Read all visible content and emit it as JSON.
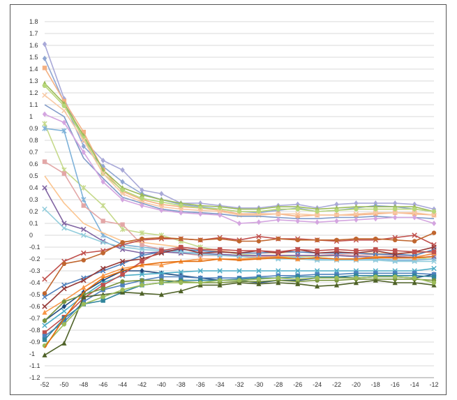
{
  "chart_data": {
    "type": "line",
    "title": "",
    "xlabel": "",
    "ylabel": "",
    "x": [
      -52,
      -50,
      -48,
      -46,
      -44,
      -42,
      -40,
      -38,
      -36,
      -34,
      -32,
      -30,
      -28,
      -26,
      -24,
      -22,
      -20,
      -18,
      -16,
      -14,
      -12
    ],
    "xlim": [
      -52,
      -12
    ],
    "ylim": [
      -1.2,
      1.8
    ],
    "ytick_step": 0.1,
    "grid": true,
    "legend": "none",
    "series": [
      {
        "color": "#a9a9d8",
        "marker": "diamond",
        "values": [
          1.61,
          1.15,
          0.8,
          0.63,
          0.55,
          0.38,
          0.35,
          0.27,
          0.27,
          0.25,
          0.23,
          0.23,
          0.25,
          0.26,
          0.23,
          0.26,
          0.27,
          0.27,
          0.27,
          0.26,
          0.22
        ]
      },
      {
        "color": "#8fa6d2",
        "marker": "diamond",
        "values": [
          1.49,
          1.12,
          0.75,
          0.58,
          0.45,
          0.35,
          0.3,
          0.26,
          0.24,
          0.22,
          0.2,
          0.19,
          0.21,
          0.23,
          0.2,
          0.21,
          0.23,
          0.25,
          0.24,
          0.22,
          0.2
        ]
      },
      {
        "color": "#f4b183",
        "marker": "square",
        "values": [
          1.41,
          1.13,
          0.87,
          0.55,
          0.37,
          0.3,
          0.26,
          0.24,
          0.23,
          0.21,
          0.18,
          0.18,
          0.18,
          0.16,
          0.17,
          0.17,
          0.17,
          0.18,
          0.19,
          0.18,
          0.17
        ]
      },
      {
        "color": "#9bbb59",
        "marker": "triangle",
        "values": [
          1.28,
          1.11,
          0.84,
          0.55,
          0.4,
          0.34,
          0.3,
          0.27,
          0.25,
          0.24,
          0.22,
          0.22,
          0.24,
          0.24,
          0.22,
          0.23,
          0.24,
          0.24,
          0.24,
          0.24,
          0.2
        ]
      },
      {
        "color": "#b7d77a",
        "marker": "circle",
        "values": [
          1.26,
          1.09,
          0.82,
          0.52,
          0.38,
          0.31,
          0.28,
          0.25,
          0.23,
          0.22,
          0.2,
          0.2,
          0.22,
          0.22,
          0.2,
          0.21,
          0.22,
          0.22,
          0.22,
          0.22,
          0.2
        ]
      },
      {
        "color": "#f8c9a4",
        "marker": "x",
        "values": [
          1.18,
          1.05,
          0.8,
          0.52,
          0.35,
          0.28,
          0.24,
          0.22,
          0.21,
          0.2,
          0.17,
          0.17,
          0.18,
          0.18,
          0.17,
          0.17,
          0.18,
          0.19,
          0.19,
          0.19,
          0.17
        ]
      },
      {
        "color": "#7f9ac8",
        "marker": "none",
        "values": [
          1.1,
          1.0,
          0.65,
          0.48,
          0.32,
          0.27,
          0.22,
          0.2,
          0.19,
          0.18,
          0.16,
          0.16,
          0.15,
          0.14,
          0.14,
          0.15,
          0.15,
          0.16,
          0.15,
          0.15,
          0.14
        ]
      },
      {
        "color": "#d4a5e0",
        "marker": "diamond",
        "values": [
          1.02,
          0.95,
          0.7,
          0.45,
          0.3,
          0.25,
          0.21,
          0.19,
          0.18,
          0.17,
          0.1,
          0.11,
          0.13,
          0.12,
          0.11,
          0.12,
          0.13,
          0.14,
          0.15,
          0.15,
          0.1
        ]
      },
      {
        "color": "#c5d98a",
        "marker": "star",
        "values": [
          0.94,
          0.55,
          0.4,
          0.25,
          0.05,
          0.02,
          0.0,
          -0.05,
          -0.1,
          -0.13,
          -0.16,
          -0.17,
          -0.18,
          -0.18,
          -0.18,
          -0.17,
          -0.18,
          -0.18,
          -0.18,
          -0.19,
          -0.2
        ]
      },
      {
        "color": "#7fb2d9",
        "marker": "star",
        "values": [
          0.9,
          0.88,
          0.3,
          0.0,
          -0.08,
          -0.1,
          -0.12,
          -0.14,
          -0.15,
          -0.16,
          -0.17,
          -0.18,
          -0.19,
          -0.19,
          -0.2,
          -0.2,
          -0.2,
          -0.2,
          -0.21,
          -0.21,
          -0.2
        ]
      },
      {
        "color": "#e3a7a7",
        "marker": "square",
        "values": [
          0.62,
          0.52,
          0.25,
          0.12,
          0.09,
          -0.08,
          -0.12,
          -0.15,
          -0.17,
          -0.17,
          -0.17,
          -0.18,
          -0.17,
          -0.17,
          -0.17,
          -0.16,
          -0.17,
          -0.16,
          -0.17,
          -0.18,
          -0.16
        ]
      },
      {
        "color": "#fbc590",
        "marker": "none",
        "values": [
          0.5,
          0.27,
          0.1,
          0.02,
          -0.05,
          -0.06,
          -0.08,
          -0.1,
          -0.12,
          -0.13,
          -0.15,
          -0.15,
          -0.15,
          -0.14,
          -0.15,
          -0.14,
          -0.15,
          -0.15,
          -0.15,
          -0.15,
          -0.14
        ]
      },
      {
        "color": "#8064a2",
        "marker": "x",
        "values": [
          0.4,
          0.1,
          0.05,
          -0.05,
          -0.12,
          -0.15,
          -0.14,
          -0.15,
          -0.16,
          -0.16,
          -0.17,
          -0.17,
          -0.17,
          -0.17,
          -0.17,
          -0.17,
          -0.18,
          -0.18,
          -0.18,
          -0.19,
          -0.18
        ]
      },
      {
        "color": "#92cddc",
        "marker": "x",
        "values": [
          0.22,
          0.06,
          0.0,
          -0.06,
          -0.1,
          -0.12,
          -0.13,
          -0.14,
          -0.16,
          -0.17,
          -0.18,
          -0.19,
          -0.2,
          -0.2,
          -0.21,
          -0.21,
          -0.21,
          -0.21,
          -0.22,
          -0.22,
          -0.22
        ]
      },
      {
        "color": "#c0504d",
        "marker": "x",
        "values": [
          -0.37,
          -0.22,
          -0.15,
          -0.13,
          -0.08,
          -0.04,
          -0.03,
          -0.03,
          -0.04,
          -0.02,
          -0.04,
          -0.01,
          -0.03,
          -0.03,
          -0.04,
          -0.05,
          -0.04,
          -0.04,
          -0.02,
          0.0,
          -0.08
        ]
      },
      {
        "color": "#c0662f",
        "marker": "circle",
        "values": [
          -0.49,
          -0.24,
          -0.21,
          -0.15,
          -0.06,
          -0.03,
          -0.02,
          -0.03,
          -0.04,
          -0.03,
          -0.05,
          -0.05,
          -0.03,
          -0.04,
          -0.04,
          -0.04,
          -0.03,
          -0.03,
          -0.04,
          -0.05,
          0.02
        ]
      },
      {
        "color": "#4f81bd",
        "marker": "x",
        "values": [
          -0.52,
          -0.42,
          -0.36,
          -0.3,
          -0.24,
          -0.17,
          -0.14,
          -0.12,
          -0.13,
          -0.14,
          -0.15,
          -0.15,
          -0.14,
          -0.14,
          -0.15,
          -0.15,
          -0.15,
          -0.16,
          -0.16,
          -0.17,
          -0.12
        ]
      },
      {
        "color": "#953735",
        "marker": "x",
        "values": [
          -0.6,
          -0.45,
          -0.38,
          -0.28,
          -0.22,
          -0.2,
          -0.15,
          -0.11,
          -0.15,
          -0.14,
          -0.15,
          -0.13,
          -0.15,
          -0.12,
          -0.15,
          -0.14,
          -0.15,
          -0.13,
          -0.16,
          -0.14,
          -0.1
        ]
      },
      {
        "color": "#f79646",
        "marker": "triangle",
        "values": [
          -0.65,
          -0.55,
          -0.44,
          -0.34,
          -0.28,
          -0.25,
          -0.25,
          -0.22,
          -0.2,
          -0.2,
          -0.2,
          -0.19,
          -0.18,
          -0.2,
          -0.19,
          -0.2,
          -0.2,
          -0.18,
          -0.19,
          -0.19,
          -0.15
        ]
      },
      {
        "color": "#1f497d",
        "marker": "diamond",
        "values": [
          -0.72,
          -0.6,
          -0.48,
          -0.38,
          -0.3,
          -0.3,
          -0.32,
          -0.34,
          -0.36,
          -0.38,
          -0.38,
          -0.4,
          -0.38,
          -0.38,
          -0.36,
          -0.35,
          -0.36,
          -0.35,
          -0.35,
          -0.36,
          -0.33
        ]
      },
      {
        "color": "#4bacc6",
        "marker": "x",
        "values": [
          -0.76,
          -0.64,
          -0.51,
          -0.4,
          -0.34,
          -0.33,
          -0.32,
          -0.31,
          -0.3,
          -0.3,
          -0.3,
          -0.3,
          -0.3,
          -0.3,
          -0.3,
          -0.3,
          -0.3,
          -0.3,
          -0.3,
          -0.3,
          -0.28
        ]
      },
      {
        "color": "#c0504d",
        "marker": "square",
        "values": [
          -0.82,
          -0.69,
          -0.53,
          -0.42,
          -0.33,
          -0.22,
          -0.13,
          -0.1,
          -0.12,
          -0.12,
          -0.13,
          -0.13,
          -0.14,
          -0.12,
          -0.13,
          -0.12,
          -0.13,
          -0.12,
          -0.13,
          -0.14,
          -0.14
        ]
      },
      {
        "color": "#4f81bd",
        "marker": "square",
        "values": [
          -0.85,
          -0.73,
          -0.56,
          -0.46,
          -0.42,
          -0.38,
          -0.35,
          -0.35,
          -0.36,
          -0.36,
          -0.36,
          -0.35,
          -0.34,
          -0.34,
          -0.33,
          -0.33,
          -0.32,
          -0.32,
          -0.32,
          -0.32,
          -0.33
        ]
      },
      {
        "color": "#31859c",
        "marker": "square",
        "values": [
          -0.88,
          -0.7,
          -0.58,
          -0.55,
          -0.48,
          -0.42,
          -0.4,
          -0.38,
          -0.38,
          -0.38,
          -0.37,
          -0.36,
          -0.36,
          -0.35,
          -0.35,
          -0.35,
          -0.34,
          -0.34,
          -0.34,
          -0.34,
          -0.35
        ]
      },
      {
        "color": "#77933c",
        "marker": "circle",
        "values": [
          -0.72,
          -0.56,
          -0.5,
          -0.45,
          -0.39,
          -0.38,
          -0.38,
          -0.39,
          -0.4,
          -0.4,
          -0.39,
          -0.39,
          -0.38,
          -0.39,
          -0.38,
          -0.38,
          -0.37,
          -0.37,
          -0.37,
          -0.37,
          -0.38
        ]
      },
      {
        "color": "#4f6228",
        "marker": "triangle",
        "values": [
          -1.01,
          -0.91,
          -0.52,
          -0.5,
          -0.48,
          -0.49,
          -0.5,
          -0.47,
          -0.42,
          -0.42,
          -0.4,
          -0.41,
          -0.4,
          -0.41,
          -0.43,
          -0.42,
          -0.4,
          -0.38,
          -0.4,
          -0.4,
          -0.42
        ]
      },
      {
        "color": "#9bbb59",
        "marker": "circle",
        "values": [
          -0.93,
          -0.75,
          -0.58,
          -0.52,
          -0.46,
          -0.42,
          -0.4,
          -0.4,
          -0.4,
          -0.38,
          -0.38,
          -0.37,
          -0.36,
          -0.37,
          -0.36,
          -0.36,
          -0.36,
          -0.35,
          -0.35,
          -0.36,
          -0.4
        ]
      },
      {
        "color": "#e46c0a",
        "marker": "none",
        "values": [
          -0.95,
          -0.7,
          -0.48,
          -0.36,
          -0.3,
          -0.25,
          -0.23,
          -0.22,
          -0.22,
          -0.2,
          -0.21,
          -0.2,
          -0.19,
          -0.2,
          -0.19,
          -0.2,
          -0.2,
          -0.19,
          -0.19,
          -0.19,
          -0.18
        ]
      }
    ]
  }
}
